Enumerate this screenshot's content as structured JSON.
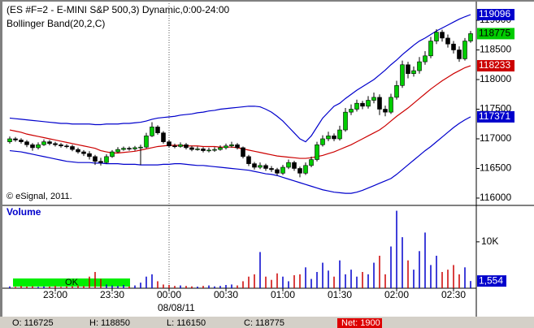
{
  "chart_data": [
    {
      "type": "candlestick",
      "title": "(ES #F=2 - E-MINI S&P 500,3) Dynamic,0:00-24:00",
      "subtitle": "Bollinger Band(20,2,C)",
      "watermark": "© eSignal, 2011.",
      "categories": [
        null,
        null,
        null,
        null,
        null,
        null,
        null,
        null,
        "23:00",
        null,
        null,
        null,
        null,
        null,
        null,
        null,
        null,
        null,
        "23:30",
        null,
        null,
        null,
        null,
        null,
        null,
        null,
        null,
        null,
        "00:00",
        null,
        null,
        null,
        null,
        null,
        null,
        null,
        null,
        null,
        "00:30",
        null,
        null,
        null,
        null,
        null,
        null,
        null,
        null,
        null,
        "01:00",
        null,
        null,
        null,
        null,
        null,
        null,
        null,
        null,
        null,
        "01:30",
        null,
        null,
        null,
        null,
        null,
        null,
        null,
        null,
        null,
        "02:00",
        null,
        null,
        null,
        null,
        null,
        null,
        null,
        null,
        null,
        "02:30",
        null,
        null,
        null
      ],
      "date_label": "08/08/11",
      "open": [
        116950,
        117000,
        116980,
        116950,
        116900,
        116850,
        116900,
        116950,
        116920,
        116900,
        116880,
        116870,
        116820,
        116780,
        116750,
        116700,
        116620,
        116600,
        116700,
        116780,
        116820,
        116840,
        116830,
        116850,
        116860,
        117050,
        117200,
        117100,
        116950,
        116880,
        116870,
        116900,
        116850,
        116820,
        116830,
        116800,
        116810,
        116820,
        116850,
        116880,
        116900,
        116850,
        116700,
        116580,
        116520,
        116550,
        116500,
        116480,
        116420,
        116520,
        116600,
        116500,
        116420,
        116550,
        116650,
        116900,
        117000,
        117050,
        117000,
        117150,
        117450,
        117500,
        117600,
        117550,
        117650,
        117700,
        117500,
        117450,
        117700,
        117900,
        118250,
        118100,
        118150,
        118300,
        118400,
        118650,
        118800,
        118700,
        118600,
        118500,
        118350,
        118650
      ],
      "high": [
        117040,
        117030,
        117010,
        116980,
        116930,
        116940,
        116990,
        116980,
        116950,
        116930,
        116910,
        116900,
        116850,
        116810,
        116790,
        116730,
        116680,
        116740,
        116810,
        116860,
        116870,
        116870,
        116880,
        116900,
        117100,
        117280,
        117230,
        117130,
        116980,
        116920,
        116940,
        116930,
        116880,
        116870,
        116860,
        116850,
        116860,
        116890,
        116920,
        116950,
        116930,
        116870,
        116730,
        116610,
        116600,
        116580,
        116540,
        116510,
        116560,
        116650,
        116630,
        116530,
        116600,
        116700,
        116950,
        117060,
        117120,
        117090,
        117220,
        117520,
        117580,
        117660,
        117640,
        117720,
        117780,
        117750,
        117560,
        117760,
        117980,
        118320,
        118300,
        118220,
        118380,
        118480,
        118720,
        118850,
        118840,
        118760,
        118650,
        118560,
        118700,
        118820
      ],
      "low": [
        116920,
        116950,
        116920,
        116860,
        116800,
        116820,
        116880,
        116890,
        116870,
        116850,
        116840,
        116790,
        116750,
        116710,
        116650,
        116560,
        116550,
        116580,
        116680,
        116760,
        116800,
        116800,
        116800,
        116560,
        116840,
        117030,
        117070,
        116920,
        116850,
        116840,
        116850,
        116820,
        116790,
        116800,
        116770,
        116770,
        116780,
        116800,
        116820,
        116850,
        116820,
        116670,
        116540,
        116480,
        116490,
        116460,
        116440,
        116380,
        116390,
        116490,
        116460,
        116350,
        116390,
        116520,
        116620,
        116870,
        116960,
        116960,
        116970,
        117120,
        117400,
        117460,
        117500,
        117510,
        117600,
        117400,
        117380,
        117420,
        117660,
        117860,
        118020,
        118050,
        118100,
        118250,
        118360,
        118600,
        118640,
        118540,
        118440,
        118300,
        118320,
        118620
      ],
      "close": [
        117000,
        116980,
        116950,
        116900,
        116850,
        116900,
        116950,
        116920,
        116900,
        116880,
        116870,
        116820,
        116780,
        116750,
        116700,
        116620,
        116600,
        116700,
        116780,
        116820,
        116840,
        116830,
        116850,
        116860,
        117050,
        117200,
        117100,
        116950,
        116880,
        116870,
        116900,
        116850,
        116820,
        116830,
        116800,
        116810,
        116820,
        116850,
        116880,
        116900,
        116850,
        116700,
        116580,
        116520,
        116550,
        116500,
        116480,
        116420,
        116520,
        116600,
        116500,
        116420,
        116550,
        116650,
        116900,
        117000,
        117050,
        117000,
        117150,
        117450,
        117500,
        117600,
        117550,
        117650,
        117700,
        117500,
        117450,
        117700,
        117900,
        118250,
        118100,
        118150,
        118300,
        118400,
        118650,
        118800,
        118700,
        118600,
        118500,
        118350,
        118650,
        118775
      ],
      "up_color": "#00cc00",
      "down_color": "#000000",
      "bands": [
        {
          "color": "#0000cc",
          "values": [
            117350,
            117340,
            117330,
            117320,
            117310,
            117300,
            117290,
            117280,
            117270,
            117260,
            117260,
            117250,
            117250,
            117250,
            117250,
            117240,
            117240,
            117250,
            117250,
            117250,
            117260,
            117260,
            117270,
            117280,
            117300,
            117330,
            117350,
            117360,
            117370,
            117380,
            117400,
            117410,
            117420,
            117440,
            117450,
            117470,
            117480,
            117500,
            117510,
            117520,
            117530,
            117540,
            117550,
            117550,
            117540,
            117500,
            117450,
            117380,
            117300,
            117200,
            117100,
            117000,
            116950,
            117050,
            117200,
            117350,
            117450,
            117550,
            117600,
            117680,
            117750,
            117820,
            117880,
            117940,
            118000,
            118080,
            118160,
            118250,
            118330,
            118420,
            118500,
            118580,
            118650,
            118700,
            118760,
            118820,
            118870,
            118920,
            118970,
            119020,
            119060,
            119096
          ]
        },
        {
          "color": "#cc0000",
          "values": [
            117150,
            117130,
            117110,
            117080,
            117060,
            117040,
            117020,
            117000,
            116980,
            116960,
            116940,
            116920,
            116900,
            116880,
            116860,
            116840,
            116800,
            116780,
            116760,
            116760,
            116770,
            116780,
            116790,
            116810,
            116830,
            116850,
            116870,
            116880,
            116890,
            116890,
            116890,
            116880,
            116880,
            116880,
            116870,
            116870,
            116870,
            116860,
            116860,
            116860,
            116850,
            116830,
            116810,
            116790,
            116770,
            116750,
            116730,
            116710,
            116700,
            116690,
            116680,
            116670,
            116670,
            116680,
            116700,
            116720,
            116750,
            116780,
            116820,
            116860,
            116900,
            116950,
            117000,
            117050,
            117100,
            117150,
            117220,
            117300,
            117380,
            117450,
            117520,
            117600,
            117680,
            117760,
            117840,
            117910,
            117980,
            118040,
            118100,
            118150,
            118200,
            118233
          ]
        },
        {
          "color": "#0000cc",
          "values": [
            116800,
            116790,
            116780,
            116760,
            116740,
            116720,
            116700,
            116680,
            116660,
            116640,
            116620,
            116610,
            116600,
            116600,
            116600,
            116590,
            116590,
            116580,
            116580,
            116580,
            116570,
            116570,
            116570,
            116560,
            116560,
            116560,
            116560,
            116570,
            116570,
            116580,
            116580,
            116570,
            116560,
            116550,
            116550,
            116540,
            116530,
            116520,
            116510,
            116500,
            116490,
            116480,
            116470,
            116450,
            116430,
            116410,
            116400,
            116380,
            116350,
            116320,
            116290,
            116260,
            116230,
            116200,
            116170,
            116140,
            116120,
            116100,
            116090,
            116080,
            116080,
            116100,
            116130,
            116170,
            116210,
            116250,
            116290,
            116330,
            116400,
            116480,
            116560,
            116640,
            116720,
            116800,
            116870,
            116950,
            117030,
            117110,
            117190,
            117260,
            117320,
            117371
          ]
        }
      ],
      "ylim": [
        115890,
        119233
      ],
      "yticks": [
        116000,
        116500,
        117000,
        117500,
        118000,
        118500,
        119000
      ]
    },
    {
      "type": "bar",
      "title": "Volume",
      "values": [
        400,
        300,
        500,
        350,
        450,
        300,
        400,
        350,
        500,
        300,
        400,
        450,
        600,
        500,
        2500,
        3500,
        2000,
        800,
        600,
        500,
        700,
        400,
        600,
        1200,
        2500,
        3000,
        1500,
        800,
        700,
        500,
        600,
        500,
        400,
        350,
        500,
        600,
        400,
        500,
        700,
        800,
        600,
        1500,
        2500,
        3000,
        7800,
        2500,
        1800,
        3200,
        2500,
        1500,
        2800,
        3000,
        4500,
        2000,
        3500,
        5500,
        3800,
        2500,
        6000,
        3000,
        4000,
        2500,
        3500,
        3000,
        5500,
        7000,
        3000,
        9000,
        16700,
        11000,
        6000,
        4000,
        8000,
        12000,
        5000,
        7000,
        3500,
        4000,
        5000,
        3000,
        4500,
        1554
      ],
      "value_labels": {
        "81": "1,554"
      },
      "up_color": "#0000cc",
      "down_color": "#cc0000",
      "box_color": "#0000cc",
      "ylim": [
        0,
        17500
      ],
      "yticks": [
        {
          "value": 10000,
          "label": "10K"
        }
      ],
      "status_label": "OK"
    }
  ],
  "status_bar": [
    "O: 116725",
    "H: 118850",
    "L: 116150",
    "C: 118775"
  ],
  "net": "Net: 1900"
}
